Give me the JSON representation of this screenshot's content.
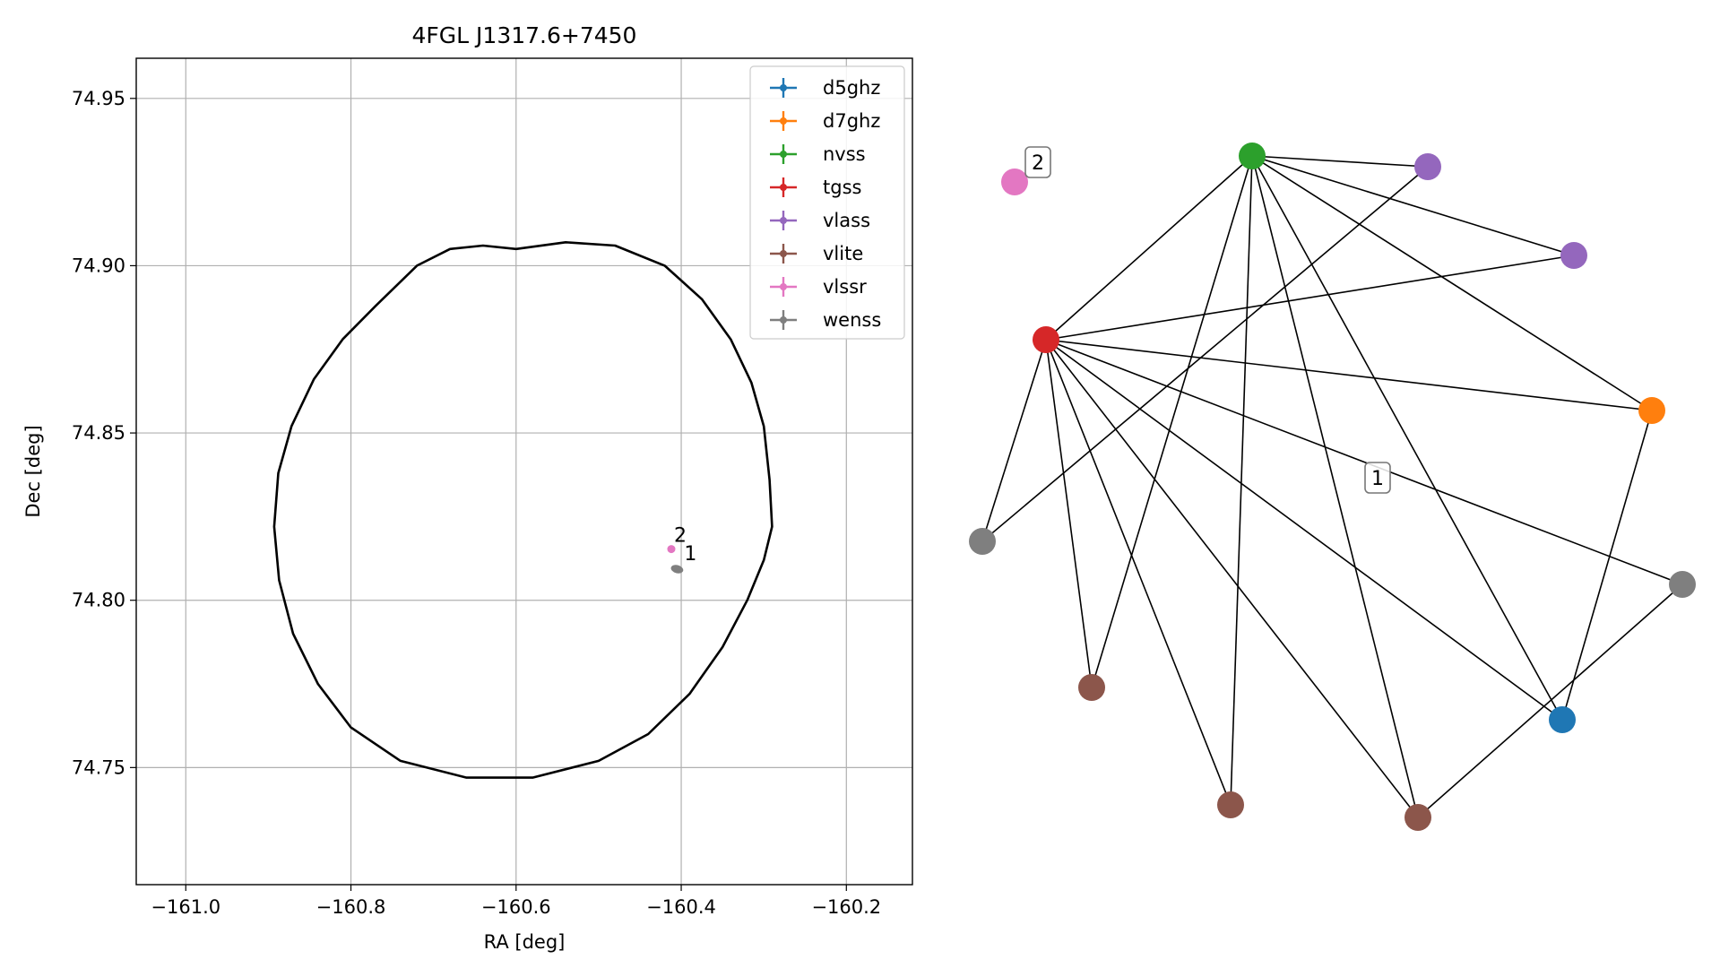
{
  "chart_data": [
    {
      "type": "scatter",
      "title": "4FGL J1317.6+7450",
      "xlabel": "RA [deg]",
      "ylabel": "Dec [deg]",
      "xlim": [
        -161.06,
        -160.12
      ],
      "ylim": [
        74.715,
        74.962
      ],
      "xticks": [
        -161.0,
        -160.8,
        -160.6,
        -160.4,
        -160.2
      ],
      "xtick_labels": [
        "−161.0",
        "−160.8",
        "−160.6",
        "−160.4",
        "−160.2"
      ],
      "yticks": [
        74.75,
        74.8,
        74.85,
        74.9,
        74.95
      ],
      "ytick_labels": [
        "74.75",
        "74.80",
        "74.85",
        "74.90",
        "74.95"
      ],
      "grid": true,
      "legend_position": "top-right",
      "legend": [
        {
          "name": "d5ghz",
          "color": "#1f77b4"
        },
        {
          "name": "d7ghz",
          "color": "#ff7f0e"
        },
        {
          "name": "nvss",
          "color": "#2ca02c"
        },
        {
          "name": "tgss",
          "color": "#d62728"
        },
        {
          "name": "vlass",
          "color": "#9467bd"
        },
        {
          "name": "vlite",
          "color": "#8c564b"
        },
        {
          "name": "vlssr",
          "color": "#e377c2"
        },
        {
          "name": "wenss",
          "color": "#7f7f7f"
        }
      ],
      "ellipse": {
        "color": "#000000",
        "points": [
          [
            -160.29,
            74.822
          ],
          [
            -160.293,
            74.836
          ],
          [
            -160.3,
            74.852
          ],
          [
            -160.315,
            74.865
          ],
          [
            -160.34,
            74.878
          ],
          [
            -160.375,
            74.89
          ],
          [
            -160.42,
            74.9
          ],
          [
            -160.48,
            74.906
          ],
          [
            -160.54,
            74.907
          ],
          [
            -160.6,
            74.905
          ],
          [
            -160.64,
            74.906
          ],
          [
            -160.68,
            74.905
          ],
          [
            -160.72,
            74.9
          ],
          [
            -160.77,
            74.888
          ],
          [
            -160.81,
            74.878
          ],
          [
            -160.845,
            74.866
          ],
          [
            -160.872,
            74.852
          ],
          [
            -160.888,
            74.838
          ],
          [
            -160.893,
            74.822
          ],
          [
            -160.887,
            74.806
          ],
          [
            -160.87,
            74.79
          ],
          [
            -160.84,
            74.775
          ],
          [
            -160.8,
            74.762
          ],
          [
            -160.74,
            74.752
          ],
          [
            -160.66,
            74.747
          ],
          [
            -160.58,
            74.747
          ],
          [
            -160.5,
            74.752
          ],
          [
            -160.44,
            74.76
          ],
          [
            -160.39,
            74.772
          ],
          [
            -160.35,
            74.786
          ],
          [
            -160.32,
            74.8
          ],
          [
            -160.3,
            74.812
          ]
        ]
      },
      "points": [
        {
          "series": "vlssr",
          "ra": -160.412,
          "dec": 74.8153,
          "color": "#e377c2",
          "label": "2"
        },
        {
          "series": "wenss",
          "ra": -160.405,
          "dec": 74.8093,
          "color": "#7f7f7f",
          "label": "1"
        }
      ]
    },
    {
      "type": "network",
      "nodes": [
        {
          "id": "nvss",
          "color": "#2ca02c",
          "label": ""
        },
        {
          "id": "tgss",
          "color": "#d62728",
          "label": ""
        },
        {
          "id": "vlass_a",
          "color": "#9467bd",
          "label": ""
        },
        {
          "id": "vlass_b",
          "color": "#9467bd",
          "label": ""
        },
        {
          "id": "d7ghz",
          "color": "#ff7f0e",
          "label": ""
        },
        {
          "id": "wenss_r",
          "color": "#7f7f7f",
          "label": ""
        },
        {
          "id": "d5ghz",
          "color": "#1f77b4",
          "label": ""
        },
        {
          "id": "vlite_r",
          "color": "#8c564b",
          "label": ""
        },
        {
          "id": "vlite_m",
          "color": "#8c564b",
          "label": ""
        },
        {
          "id": "vlite_l",
          "color": "#8c564b",
          "label": ""
        },
        {
          "id": "wenss_l",
          "color": "#7f7f7f",
          "label": ""
        },
        {
          "id": "vlssr",
          "color": "#e377c2",
          "label": "2"
        }
      ],
      "edges": [
        [
          "nvss",
          "vlass_a"
        ],
        [
          "nvss",
          "vlass_b"
        ],
        [
          "nvss",
          "tgss"
        ],
        [
          "nvss",
          "d7ghz"
        ],
        [
          "nvss",
          "d5ghz"
        ],
        [
          "nvss",
          "vlite_r"
        ],
        [
          "nvss",
          "vlite_m"
        ],
        [
          "nvss",
          "vlite_l"
        ],
        [
          "tgss",
          "vlass_b"
        ],
        [
          "tgss",
          "d7ghz"
        ],
        [
          "tgss",
          "wenss_r"
        ],
        [
          "tgss",
          "d5ghz"
        ],
        [
          "tgss",
          "vlite_r"
        ],
        [
          "tgss",
          "vlite_m"
        ],
        [
          "tgss",
          "vlite_l"
        ],
        [
          "tgss",
          "wenss_l"
        ],
        [
          "vlass_a",
          "wenss_l"
        ],
        [
          "d7ghz",
          "d5ghz"
        ],
        [
          "wenss_r",
          "vlite_r"
        ]
      ],
      "annotations": [
        {
          "text": "1"
        },
        {
          "text": "2"
        }
      ]
    }
  ]
}
